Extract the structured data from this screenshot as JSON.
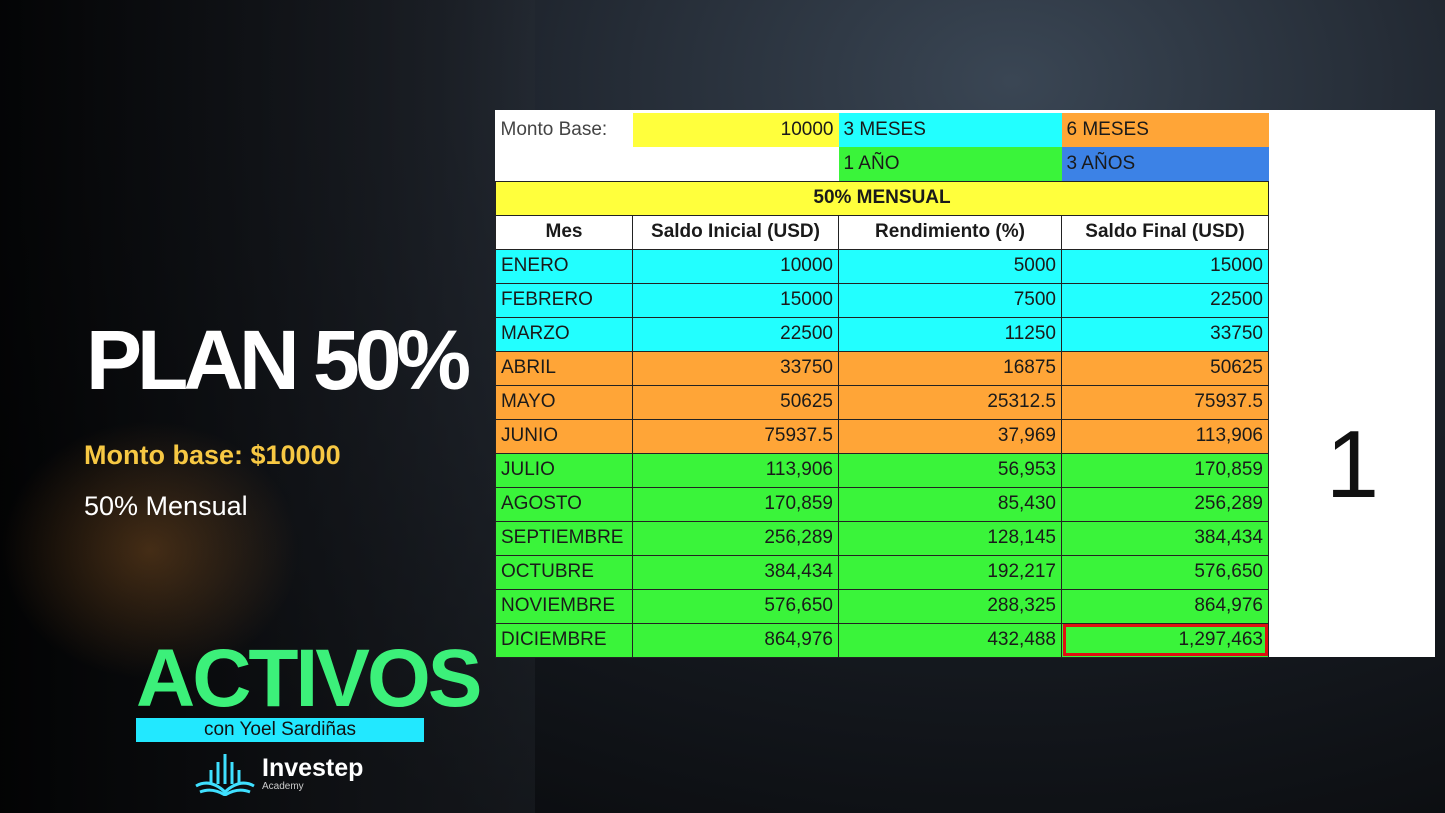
{
  "left": {
    "title": "PLAN 50%",
    "monto_base": "Monto base: $10000",
    "rate": "50% Mensual",
    "brand": "ACTIVOS",
    "host": "con Yoel Sardiñas",
    "logo_name": "Investep",
    "logo_sub": "Academy"
  },
  "sheet": {
    "monto_label": "Monto Base:",
    "monto_value": "10000",
    "legend": [
      {
        "label": "3 MESES",
        "color": "#22ffff"
      },
      {
        "label": "6 MESES",
        "color": "#ffa537"
      },
      {
        "label": "1 AÑO",
        "color": "#3af43a"
      },
      {
        "label": "3 AÑOS",
        "color": "#3c82e6"
      }
    ],
    "section_title": "50% MENSUAL",
    "headers": [
      "Mes",
      "Saldo Inicial (USD)",
      "Rendimiento (%)",
      "Saldo Final (USD)"
    ],
    "rows": [
      [
        "ENERO",
        "10000",
        "5000",
        "15000"
      ],
      [
        "FEBRERO",
        "15000",
        "7500",
        "22500"
      ],
      [
        "MARZO",
        "22500",
        "11250",
        "33750"
      ],
      [
        "ABRIL",
        "33750",
        "16875",
        "50625"
      ],
      [
        "MAYO",
        "50625",
        "25312.5",
        "75937.5"
      ],
      [
        "JUNIO",
        "75937.5",
        "37,969",
        "113,906"
      ],
      [
        "JULIO",
        "113,906",
        "56,953",
        "170,859"
      ],
      [
        "AGOSTO",
        "170,859",
        "85,430",
        "256,289"
      ],
      [
        "SEPTIEMBRE",
        "256,289",
        "128,145",
        "384,434"
      ],
      [
        "OCTUBRE",
        "384,434",
        "192,217",
        "576,650"
      ],
      [
        "NOVIEMBRE",
        "576,650",
        "288,325",
        "864,976"
      ],
      [
        "DICIEMBRE",
        "864,976",
        "432,488",
        "1,297,463"
      ]
    ],
    "side_number": "1"
  }
}
